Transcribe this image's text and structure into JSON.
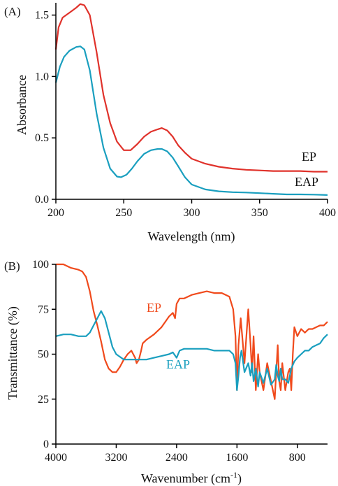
{
  "chart_data": [
    {
      "type": "line",
      "panel_label": "(A)",
      "xlabel": "Wavelength (nm)",
      "ylabel": "Absorbance",
      "xlim": [
        200,
        400
      ],
      "ylim": [
        0,
        1.6
      ],
      "x_ticks": [
        200,
        250,
        300,
        350,
        400
      ],
      "y_ticks": [
        0.0,
        0.5,
        1.0,
        1.5
      ],
      "x_tick_labels": [
        "200",
        "250",
        "300",
        "350",
        "400"
      ],
      "y_tick_labels": [
        "0.0",
        "0.5",
        "1.0",
        "1.5"
      ],
      "grid": false,
      "legend": "inline-right",
      "series": [
        {
          "name": "EP",
          "color": "#e0322b",
          "x": [
            200,
            202,
            205,
            210,
            215,
            218,
            221,
            225,
            230,
            235,
            240,
            245,
            250,
            255,
            260,
            265,
            270,
            275,
            278,
            282,
            286,
            290,
            295,
            300,
            310,
            320,
            330,
            340,
            350,
            360,
            370,
            380,
            390,
            400
          ],
          "y": [
            1.22,
            1.4,
            1.48,
            1.52,
            1.56,
            1.59,
            1.58,
            1.5,
            1.2,
            0.85,
            0.62,
            0.47,
            0.4,
            0.4,
            0.45,
            0.51,
            0.55,
            0.57,
            0.58,
            0.56,
            0.51,
            0.44,
            0.38,
            0.33,
            0.29,
            0.265,
            0.25,
            0.24,
            0.235,
            0.23,
            0.23,
            0.23,
            0.225,
            0.225
          ]
        },
        {
          "name": "EAP",
          "color": "#1a9fbf",
          "x": [
            200,
            203,
            206,
            210,
            215,
            218,
            221,
            225,
            230,
            235,
            240,
            245,
            248,
            252,
            256,
            260,
            265,
            270,
            275,
            278,
            282,
            286,
            290,
            295,
            300,
            310,
            320,
            330,
            340,
            350,
            360,
            370,
            380,
            390,
            400
          ],
          "y": [
            0.95,
            1.08,
            1.16,
            1.21,
            1.24,
            1.245,
            1.22,
            1.05,
            0.7,
            0.42,
            0.25,
            0.185,
            0.18,
            0.2,
            0.25,
            0.31,
            0.37,
            0.4,
            0.41,
            0.41,
            0.39,
            0.34,
            0.27,
            0.18,
            0.12,
            0.08,
            0.065,
            0.058,
            0.055,
            0.05,
            0.045,
            0.04,
            0.04,
            0.038,
            0.035
          ]
        }
      ]
    },
    {
      "type": "line",
      "panel_label": "(B)",
      "xlabel": "Wavenumber (cm",
      "xlabel_sup": "-1",
      "xlabel_tail": ")",
      "ylabel": "Transmittance (%)",
      "xlim": [
        4000,
        400
      ],
      "ylim": [
        0,
        100
      ],
      "x_reversed": true,
      "x_ticks": [
        4000,
        3200,
        2400,
        1600,
        800
      ],
      "y_ticks": [
        0,
        25,
        50,
        75,
        100
      ],
      "x_tick_labels": [
        "4000",
        "3200",
        "2400",
        "1600",
        "800"
      ],
      "y_tick_labels": [
        "0",
        "25",
        "50",
        "75",
        "100"
      ],
      "grid": false,
      "legend": "inline",
      "series": [
        {
          "name": "EP",
          "color": "#f04a1c",
          "x": [
            4000,
            3900,
            3800,
            3700,
            3650,
            3600,
            3550,
            3500,
            3450,
            3400,
            3350,
            3300,
            3250,
            3200,
            3150,
            3100,
            3050,
            3000,
            2950,
            2930,
            2900,
            2870,
            2850,
            2800,
            2700,
            2600,
            2500,
            2450,
            2420,
            2400,
            2360,
            2300,
            2200,
            2100,
            2000,
            1900,
            1800,
            1700,
            1650,
            1620,
            1600,
            1580,
            1550,
            1500,
            1450,
            1420,
            1400,
            1380,
            1350,
            1320,
            1300,
            1250,
            1200,
            1150,
            1100,
            1080,
            1060,
            1040,
            1020,
            1000,
            960,
            920,
            900,
            880,
            860,
            840,
            800,
            750,
            700,
            650,
            600,
            550,
            500,
            450,
            400
          ],
          "y": [
            100,
            100,
            98,
            97,
            96,
            93,
            85,
            74,
            66,
            57,
            47,
            42,
            40,
            40,
            43,
            47,
            50,
            52,
            48,
            45,
            47,
            52,
            56,
            58,
            61,
            65,
            71,
            73,
            70,
            78,
            81,
            81,
            83,
            84,
            85,
            84,
            84,
            82,
            75,
            60,
            30,
            55,
            70,
            45,
            75,
            55,
            40,
            60,
            30,
            50,
            40,
            30,
            45,
            35,
            25,
            40,
            55,
            35,
            30,
            45,
            30,
            40,
            42,
            30,
            50,
            65,
            60,
            64,
            62,
            64,
            64,
            65,
            66,
            66,
            68
          ]
        },
        {
          "name": "EAP",
          "color": "#1a9fbf",
          "x": [
            4000,
            3900,
            3800,
            3700,
            3600,
            3550,
            3500,
            3450,
            3400,
            3350,
            3300,
            3250,
            3200,
            3100,
            3000,
            2900,
            2800,
            2700,
            2600,
            2500,
            2450,
            2400,
            2360,
            2300,
            2200,
            2100,
            2000,
            1900,
            1800,
            1700,
            1650,
            1620,
            1600,
            1580,
            1560,
            1540,
            1500,
            1450,
            1420,
            1400,
            1380,
            1350,
            1320,
            1300,
            1250,
            1200,
            1150,
            1100,
            1080,
            1060,
            1040,
            1020,
            1000,
            960,
            920,
            900,
            880,
            860,
            840,
            800,
            750,
            700,
            650,
            600,
            550,
            500,
            450,
            400
          ],
          "y": [
            60,
            61,
            61,
            60,
            60,
            62,
            66,
            70,
            74,
            70,
            62,
            54,
            50,
            47,
            47,
            47,
            47,
            48,
            49,
            50,
            51,
            48,
            52,
            53,
            53,
            53,
            53,
            52,
            52,
            52,
            50,
            45,
            30,
            38,
            48,
            52,
            40,
            45,
            38,
            45,
            35,
            42,
            32,
            40,
            34,
            42,
            33,
            36,
            44,
            38,
            35,
            42,
            36,
            36,
            34,
            38,
            42,
            44,
            46,
            48,
            50,
            52,
            52,
            54,
            55,
            56,
            59,
            61
          ]
        }
      ]
    }
  ]
}
